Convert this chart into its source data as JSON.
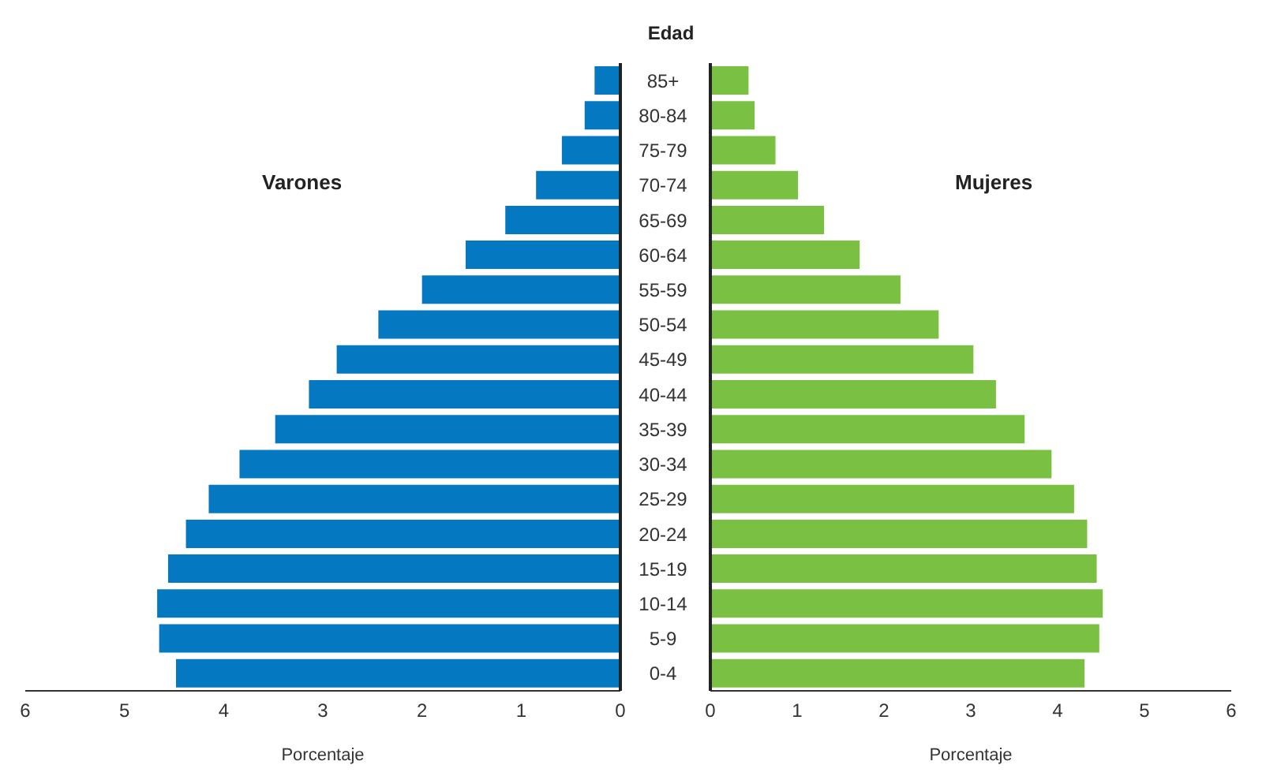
{
  "chart_data": [
    {
      "type": "bar",
      "orientation": "horizontal",
      "xlabel": "Porcentaje",
      "categories": [
        null,
        null,
        null,
        null,
        null,
        null,
        null,
        null,
        null,
        null,
        null,
        null,
        null,
        null,
        null,
        null,
        null,
        null
      ],
      "series": [
        {
          "name": "Varones",
          "color": "#0479c2",
          "values": [
            0.26,
            0.36,
            0.59,
            0.85,
            1.16,
            1.56,
            2.0,
            2.44,
            2.86,
            3.14,
            3.48,
            3.84,
            4.15,
            4.38,
            4.56,
            4.67,
            4.65,
            4.48
          ]
        }
      ],
      "xlim": [
        6,
        0
      ],
      "xticks": [
        6,
        5,
        4,
        3,
        2,
        1,
        0
      ],
      "tick_labels": "x",
      "grid": false
    },
    {
      "type": "bar",
      "orientation": "horizontal",
      "xlabel": "Porcentaje",
      "ylabel": "Edad",
      "categories": [
        "85+",
        "80-84",
        "75-79",
        "70-74",
        "65-69",
        "60-64",
        "55-59",
        "50-54",
        "45-49",
        "40-44",
        "35-39",
        "30-34",
        "25-29",
        "20-24",
        "15-19",
        "10-14",
        "5-9",
        "0-4"
      ],
      "series": [
        {
          "name": "Mujeres",
          "color": "#7ac143",
          "values": [
            0.44,
            0.51,
            0.75,
            1.01,
            1.31,
            1.72,
            2.19,
            2.63,
            3.03,
            3.29,
            3.62,
            3.93,
            4.19,
            4.34,
            4.45,
            4.52,
            4.48,
            4.31
          ]
        }
      ],
      "xlim": [
        0,
        6
      ],
      "xticks": [
        0,
        1,
        2,
        3,
        4,
        5,
        6
      ],
      "grid": false
    }
  ]
}
